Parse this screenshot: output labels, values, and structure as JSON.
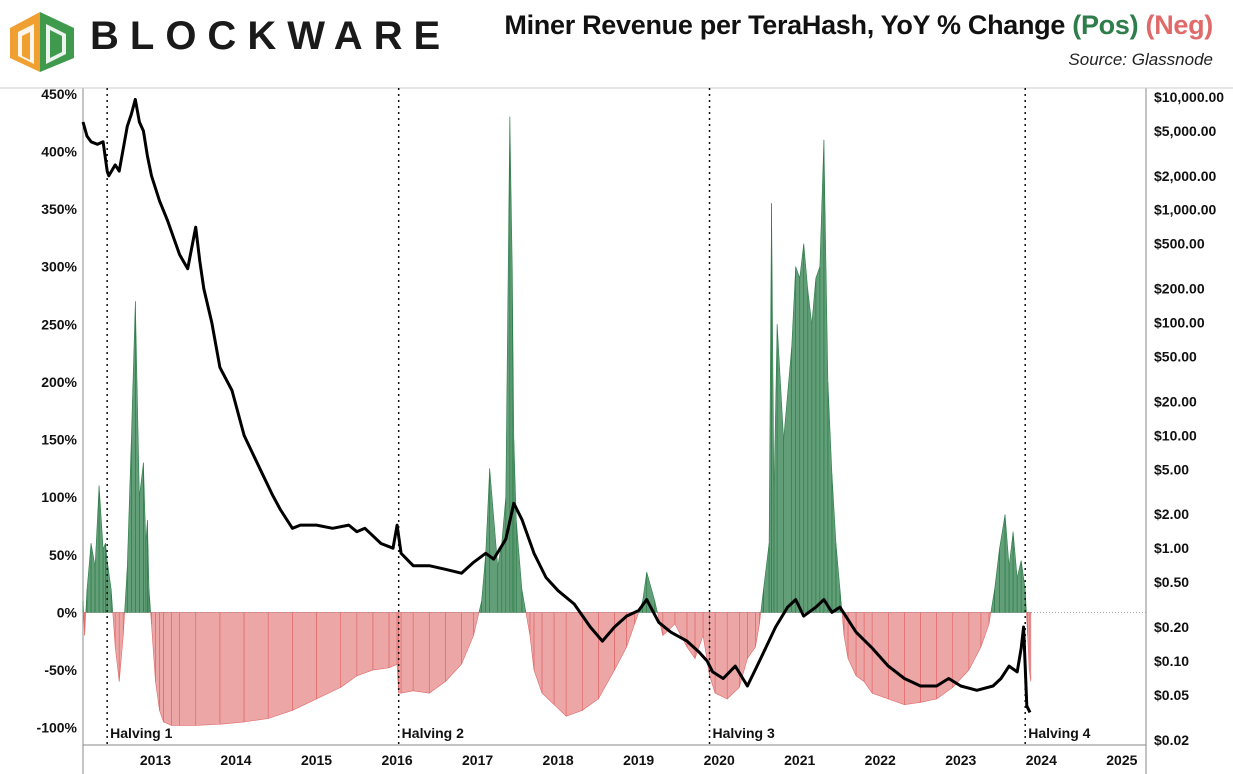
{
  "brand": {
    "name": "BLOCKWARE",
    "colors": {
      "logo_orange": "#f0a030",
      "logo_green": "#3f9a4e",
      "text": "#1a1a1a"
    }
  },
  "title": {
    "main": "Miner Revenue per TeraHash, YoY % Change",
    "pos_label": "(Pos)",
    "neg_label": "(Neg)",
    "pos_color": "#2e7d4a",
    "neg_color": "#e06a6a",
    "source": "Source: Glassnode"
  },
  "chart_data": {
    "type": "area",
    "title": "Miner Revenue per TeraHash, YoY % Change (Pos) (Neg)",
    "source": "Source: Glassnode",
    "x_range": [
      2012.6,
      2025.8
    ],
    "y_left": {
      "ylim": [
        -115,
        455
      ],
      "ticks": [
        -100,
        -50,
        0,
        50,
        100,
        150,
        200,
        250,
        300,
        350,
        400,
        450
      ],
      "tick_labels": [
        "-100%",
        "-50%",
        "0%",
        "50%",
        "100%",
        "150%",
        "200%",
        "250%",
        "300%",
        "350%",
        "400%",
        "450%"
      ]
    },
    "y_right": {
      "scale": "log",
      "ylim": [
        0.018,
        12000
      ],
      "ticks": [
        0.02,
        0.05,
        0.1,
        0.2,
        0.5,
        1,
        2,
        5,
        10,
        20,
        50,
        100,
        200,
        500,
        1000,
        2000,
        5000,
        10000
      ],
      "tick_labels": [
        "$0.02",
        "$0.05",
        "$0.10",
        "$0.20",
        "$0.50",
        "$1.00",
        "$2.00",
        "$5.00",
        "$10.00",
        "$20.00",
        "$50.00",
        "$100.00",
        "$200.00",
        "$500.00",
        "$1,000.00",
        "$2,000.00",
        "$5,000.00",
        "$10,000.00"
      ]
    },
    "x_ticks": [
      {
        "x": 2013.5,
        "label": "2013"
      },
      {
        "x": 2014.5,
        "label": "2014"
      },
      {
        "x": 2015.5,
        "label": "2015"
      },
      {
        "x": 2016.5,
        "label": "2016"
      },
      {
        "x": 2017.5,
        "label": "2017"
      },
      {
        "x": 2018.5,
        "label": "2018"
      },
      {
        "x": 2019.5,
        "label": "2019"
      },
      {
        "x": 2020.5,
        "label": "2020"
      },
      {
        "x": 2021.5,
        "label": "2021"
      },
      {
        "x": 2022.5,
        "label": "2022"
      },
      {
        "x": 2023.5,
        "label": "2023"
      },
      {
        "x": 2024.5,
        "label": "2024"
      },
      {
        "x": 2025.5,
        "label": "2025"
      }
    ],
    "halvings": [
      {
        "x": 2012.9,
        "label": "Halving 1"
      },
      {
        "x": 2016.52,
        "label": "Halving 2"
      },
      {
        "x": 2020.38,
        "label": "Halving 3"
      },
      {
        "x": 2024.3,
        "label": "Halving 4"
      }
    ],
    "series": [
      {
        "name": "YoY % Change",
        "axis": "left",
        "pos_color": "#2e7d4a",
        "neg_color": "#e06a6a",
        "x": [
          2012.6,
          2012.62,
          2012.65,
          2012.7,
          2012.75,
          2012.8,
          2012.85,
          2012.88,
          2012.9,
          2012.95,
          2013.0,
          2013.05,
          2013.1,
          2013.15,
          2013.2,
          2013.25,
          2013.3,
          2013.35,
          2013.38,
          2013.4,
          2013.42,
          2013.45,
          2013.5,
          2013.55,
          2013.6,
          2013.7,
          2013.8,
          2014.0,
          2014.3,
          2014.6,
          2014.9,
          2015.2,
          2015.5,
          2015.8,
          2016.0,
          2016.2,
          2016.4,
          2016.5,
          2016.52,
          2016.55,
          2016.7,
          2016.9,
          2017.1,
          2017.3,
          2017.45,
          2017.55,
          2017.6,
          2017.65,
          2017.75,
          2017.8,
          2017.85,
          2017.9,
          2017.93,
          2017.95,
          2017.98,
          2018.05,
          2018.15,
          2018.2,
          2018.3,
          2018.45,
          2018.6,
          2018.8,
          2019.0,
          2019.2,
          2019.35,
          2019.45,
          2019.55,
          2019.6,
          2019.7,
          2019.8,
          2019.95,
          2020.1,
          2020.2,
          2020.3,
          2020.38,
          2020.45,
          2020.6,
          2020.75,
          2020.85,
          2020.95,
          2021.0,
          2021.05,
          2021.12,
          2021.15,
          2021.18,
          2021.22,
          2021.3,
          2021.4,
          2021.45,
          2021.5,
          2021.55,
          2021.6,
          2021.65,
          2021.7,
          2021.75,
          2021.8,
          2021.85,
          2021.9,
          2021.95,
          2022.0,
          2022.05,
          2022.1,
          2022.2,
          2022.3,
          2022.4,
          2022.6,
          2022.8,
          2023.0,
          2023.2,
          2023.4,
          2023.6,
          2023.75,
          2023.85,
          2023.92,
          2023.98,
          2024.05,
          2024.1,
          2024.15,
          2024.2,
          2024.25,
          2024.3,
          2024.33,
          2024.35,
          2024.37
        ],
        "values": [
          10,
          -20,
          20,
          60,
          40,
          110,
          55,
          60,
          45,
          20,
          -30,
          -60,
          -20,
          40,
          150,
          270,
          100,
          130,
          60,
          80,
          20,
          -10,
          -60,
          -85,
          -95,
          -98,
          -98,
          -98,
          -97,
          -95,
          -92,
          -85,
          -75,
          -65,
          -55,
          -50,
          -48,
          -45,
          -70,
          -70,
          -68,
          -70,
          -60,
          -45,
          -20,
          10,
          50,
          125,
          40,
          60,
          100,
          430,
          300,
          150,
          80,
          20,
          -20,
          -50,
          -70,
          -80,
          -90,
          -85,
          -75,
          -50,
          -30,
          -10,
          10,
          35,
          10,
          -20,
          -10,
          -30,
          -40,
          -20,
          -55,
          -70,
          -75,
          -65,
          -40,
          -30,
          -10,
          20,
          60,
          355,
          100,
          250,
          150,
          230,
          300,
          290,
          320,
          280,
          250,
          290,
          300,
          410,
          200,
          120,
          60,
          20,
          -20,
          -40,
          -55,
          -60,
          -70,
          -75,
          -80,
          -78,
          -75,
          -65,
          -50,
          -30,
          -10,
          20,
          55,
          85,
          40,
          70,
          30,
          45,
          20,
          -20,
          -50,
          -60
        ]
      },
      {
        "name": "Miner Revenue per TeraHash (USD)",
        "axis": "right",
        "color": "#000000",
        "x": [
          2012.6,
          2012.65,
          2012.7,
          2012.78,
          2012.85,
          2012.9,
          2012.92,
          2013.0,
          2013.05,
          2013.1,
          2013.15,
          2013.2,
          2013.25,
          2013.3,
          2013.35,
          2013.4,
          2013.45,
          2013.55,
          2013.65,
          2013.8,
          2013.9,
          2014.0,
          2014.05,
          2014.1,
          2014.2,
          2014.3,
          2014.45,
          2014.6,
          2014.8,
          2014.95,
          2015.05,
          2015.2,
          2015.3,
          2015.5,
          2015.7,
          2015.9,
          2016.0,
          2016.1,
          2016.3,
          2016.45,
          2016.5,
          2016.55,
          2016.7,
          2016.9,
          2017.1,
          2017.3,
          2017.45,
          2017.6,
          2017.7,
          2017.85,
          2017.95,
          2018.05,
          2018.2,
          2018.35,
          2018.5,
          2018.7,
          2018.9,
          2019.05,
          2019.2,
          2019.35,
          2019.5,
          2019.6,
          2019.75,
          2019.9,
          2020.1,
          2020.25,
          2020.35,
          2020.42,
          2020.55,
          2020.7,
          2020.85,
          2021.0,
          2021.2,
          2021.35,
          2021.45,
          2021.55,
          2021.7,
          2021.8,
          2021.9,
          2022.0,
          2022.2,
          2022.4,
          2022.6,
          2022.8,
          2023.0,
          2023.2,
          2023.35,
          2023.5,
          2023.7,
          2023.9,
          2024.0,
          2024.1,
          2024.2,
          2024.25,
          2024.28,
          2024.32,
          2024.36
        ],
        "values": [
          6000,
          4500,
          4000,
          3800,
          4000,
          2200,
          2000,
          2500,
          2200,
          3500,
          5500,
          7000,
          9500,
          6000,
          5000,
          3000,
          2000,
          1200,
          800,
          400,
          300,
          700,
          350,
          200,
          100,
          40,
          25,
          10,
          5,
          3,
          2.2,
          1.5,
          1.6,
          1.6,
          1.5,
          1.6,
          1.4,
          1.5,
          1.1,
          1.0,
          1.6,
          0.9,
          0.7,
          0.7,
          0.65,
          0.6,
          0.75,
          0.9,
          0.8,
          1.2,
          2.5,
          1.8,
          0.9,
          0.55,
          0.42,
          0.32,
          0.2,
          0.15,
          0.2,
          0.25,
          0.28,
          0.35,
          0.22,
          0.18,
          0.15,
          0.12,
          0.1,
          0.08,
          0.07,
          0.09,
          0.06,
          0.1,
          0.2,
          0.3,
          0.35,
          0.25,
          0.3,
          0.35,
          0.27,
          0.3,
          0.18,
          0.13,
          0.09,
          0.07,
          0.06,
          0.06,
          0.07,
          0.06,
          0.055,
          0.06,
          0.07,
          0.09,
          0.08,
          0.13,
          0.2,
          0.04,
          0.035
        ]
      }
    ]
  }
}
